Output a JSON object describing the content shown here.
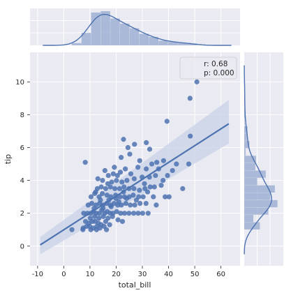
{
  "chart_data": {
    "type": "scatter",
    "title": "",
    "xlabel": "total_bill",
    "ylabel": "tip",
    "xlim": [
      -12.9,
      67.3
    ],
    "ylim": [
      -1.2,
      11.8
    ],
    "xticks": [
      -10,
      0,
      10,
      20,
      30,
      40,
      50,
      60
    ],
    "yticks": [
      0,
      2,
      4,
      6,
      8,
      10
    ],
    "grid": true,
    "background": "#eaeaf2",
    "colors": {
      "points": "#4c72b0",
      "line": "#4c72b0",
      "ci_band": "#c7d2e6",
      "hist": "#a3b4d4"
    },
    "annotation": {
      "lines": [
        "r: 0.68",
        "p: 0.000"
      ],
      "placement": "top-right"
    },
    "regression": {
      "x_range": [
        -9.0,
        63.0
      ],
      "y_range": [
        0.07,
        7.45
      ],
      "ci_low": [
        -0.5,
        6.25
      ],
      "ci_high": [
        0.55,
        8.9
      ]
    },
    "points": [
      [
        8.2,
        5.1
      ],
      [
        50.8,
        10.0
      ],
      [
        48.2,
        9.0
      ],
      [
        39.4,
        7.6
      ],
      [
        22.8,
        6.5
      ],
      [
        24.5,
        6.0
      ],
      [
        27.0,
        6.2
      ],
      [
        31.5,
        6.3
      ],
      [
        32.8,
        5.9
      ],
      [
        48.3,
        6.7
      ],
      [
        21.9,
        5.4
      ],
      [
        25.2,
        5.6
      ],
      [
        29.0,
        5.2
      ],
      [
        33.6,
        5.0
      ],
      [
        35.5,
        5.1
      ],
      [
        38.1,
        5.2
      ],
      [
        43.0,
        5.0
      ],
      [
        47.7,
        5.0
      ],
      [
        15.7,
        4.6
      ],
      [
        19.3,
        4.8
      ],
      [
        23.5,
        4.7
      ],
      [
        28.3,
        4.8
      ],
      [
        31.5,
        4.7
      ],
      [
        35.0,
        4.3
      ],
      [
        41.5,
        4.6
      ],
      [
        20.5,
        4.3
      ],
      [
        24.1,
        4.0
      ],
      [
        26.9,
        4.1
      ],
      [
        29.9,
        4.2
      ],
      [
        32.7,
        4.2
      ],
      [
        37.9,
        4.0
      ],
      [
        39.6,
        4.3
      ],
      [
        13.0,
        4.1
      ],
      [
        14.8,
        4.0
      ],
      [
        17.0,
        4.3
      ],
      [
        18.3,
        3.9
      ],
      [
        20.1,
        4.0
      ],
      [
        22.2,
        3.9
      ],
      [
        12.8,
        3.5
      ],
      [
        14.3,
        3.6
      ],
      [
        16.0,
        3.5
      ],
      [
        17.8,
        3.6
      ],
      [
        19.5,
        3.5
      ],
      [
        21.3,
        3.5
      ],
      [
        23.0,
        3.6
      ],
      [
        24.9,
        3.5
      ],
      [
        26.8,
        3.5
      ],
      [
        28.9,
        3.4
      ],
      [
        31.0,
        3.5
      ],
      [
        33.0,
        3.6
      ],
      [
        10.4,
        3.0
      ],
      [
        11.8,
        3.2
      ],
      [
        13.5,
        3.0
      ],
      [
        14.7,
        3.2
      ],
      [
        16.5,
        3.1
      ],
      [
        18.0,
        3.0
      ],
      [
        19.8,
        3.1
      ],
      [
        21.5,
        3.0
      ],
      [
        23.2,
        3.0
      ],
      [
        25.0,
        3.0
      ],
      [
        26.5,
        3.1
      ],
      [
        28.6,
        3.0
      ],
      [
        30.3,
        3.0
      ],
      [
        32.0,
        3.3
      ],
      [
        34.2,
        3.0
      ],
      [
        38.7,
        3.0
      ],
      [
        40.2,
        3.0
      ],
      [
        45.4,
        3.5
      ],
      [
        9.3,
        2.5
      ],
      [
        10.7,
        2.6
      ],
      [
        12.3,
        2.5
      ],
      [
        13.7,
        2.6
      ],
      [
        15.0,
        2.5
      ],
      [
        16.4,
        2.6
      ],
      [
        17.8,
        2.5
      ],
      [
        19.2,
        2.6
      ],
      [
        20.6,
        2.5
      ],
      [
        22.0,
        2.5
      ],
      [
        23.7,
        2.6
      ],
      [
        25.4,
        2.5
      ],
      [
        27.1,
        2.5
      ],
      [
        29.1,
        2.6
      ],
      [
        31.4,
        2.6
      ],
      [
        35.3,
        2.5
      ],
      [
        7.6,
        2.0
      ],
      [
        9.0,
        2.0
      ],
      [
        10.3,
        2.0
      ],
      [
        11.3,
        2.1
      ],
      [
        12.4,
        2.0
      ],
      [
        13.6,
        2.0
      ],
      [
        14.5,
        2.2
      ],
      [
        15.6,
        2.0
      ],
      [
        16.6,
        2.1
      ],
      [
        17.7,
        2.0
      ],
      [
        18.8,
        2.0
      ],
      [
        20.2,
        2.1
      ],
      [
        21.7,
        2.0
      ],
      [
        23.2,
        2.0
      ],
      [
        24.9,
        2.0
      ],
      [
        26.7,
        2.0
      ],
      [
        28.4,
        2.0
      ],
      [
        30.1,
        2.0
      ],
      [
        32.2,
        2.0
      ],
      [
        10.1,
        1.7
      ],
      [
        11.8,
        1.8
      ],
      [
        13.4,
        1.7
      ],
      [
        15.1,
        1.8
      ],
      [
        16.9,
        1.7
      ],
      [
        18.6,
        1.8
      ],
      [
        20.7,
        1.6
      ],
      [
        22.4,
        1.5
      ],
      [
        8.3,
        1.5
      ],
      [
        9.6,
        1.4
      ],
      [
        10.9,
        1.5
      ],
      [
        12.0,
        1.5
      ],
      [
        13.2,
        1.4
      ],
      [
        14.3,
        1.3
      ],
      [
        16.0,
        1.5
      ],
      [
        17.5,
        1.3
      ],
      [
        7.4,
        1.1
      ],
      [
        8.7,
        1.2
      ],
      [
        9.9,
        1.2
      ],
      [
        11.2,
        1.1
      ],
      [
        12.6,
        1.2
      ],
      [
        13.8,
        1.1
      ],
      [
        15.4,
        1.2
      ],
      [
        3.1,
        1.0
      ],
      [
        7.3,
        1.0
      ],
      [
        10.3,
        1.0
      ],
      [
        12.5,
        1.0
      ],
      [
        16.3,
        1.0
      ],
      [
        15.0,
        2.3
      ],
      [
        18.1,
        2.4
      ],
      [
        21.0,
        2.7
      ],
      [
        24.0,
        2.9
      ],
      [
        11.6,
        2.3
      ],
      [
        14.0,
        2.8
      ],
      [
        17.2,
        2.8
      ],
      [
        19.9,
        2.9
      ],
      [
        22.8,
        3.3
      ],
      [
        27.7,
        2.8
      ],
      [
        30.8,
        3.8
      ],
      [
        25.6,
        4.4
      ],
      [
        21.6,
        4.5
      ],
      [
        12.2,
        3.3
      ],
      [
        16.8,
        3.8
      ],
      [
        18.9,
        4.4
      ],
      [
        34.6,
        3.6
      ],
      [
        37.2,
        3.7
      ],
      [
        36.2,
        4.7
      ]
    ],
    "hist_x": {
      "edges": [
        3.07,
        6.75,
        10.43,
        14.11,
        17.79,
        21.47,
        25.15,
        28.83,
        32.51,
        36.19,
        39.87,
        43.55,
        47.23,
        50.91
      ],
      "density": [
        0.005,
        0.027,
        0.071,
        0.074,
        0.058,
        0.047,
        0.037,
        0.025,
        0.018,
        0.01,
        0.008,
        0.005,
        0.004
      ]
    },
    "hist_y": {
      "edges": [
        1.0,
        1.45,
        1.9,
        2.35,
        2.8,
        3.25,
        3.7,
        4.15,
        4.6,
        5.05,
        5.5,
        5.95,
        6.4,
        6.85,
        7.3,
        7.75,
        8.2,
        8.65,
        9.1,
        9.55,
        10.0
      ],
      "density": [
        0.24,
        0.14,
        0.37,
        0.51,
        0.4,
        0.47,
        0.2,
        0.33,
        0.17,
        0.18,
        0.02,
        0.08,
        0.04,
        0.05,
        0.005,
        0.02,
        0.005,
        0.01,
        0.005,
        0.01
      ]
    }
  }
}
